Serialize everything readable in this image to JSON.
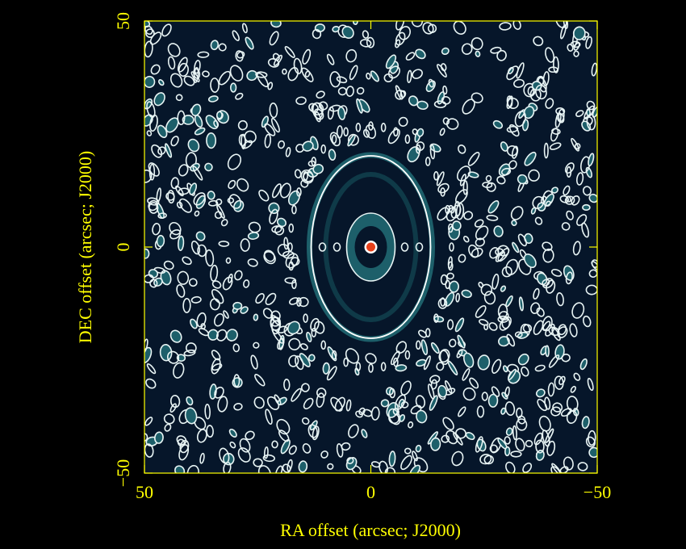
{
  "chart_data": {
    "type": "contour",
    "x_label": "RA offset (arcsec; J2000)",
    "y_label": "DEC offset (arcsec; J2000)",
    "xlim": [
      50,
      -50
    ],
    "ylim": [
      -50,
      50
    ],
    "xticks": [
      50,
      0,
      {
        "value": -50,
        "label": "−50"
      }
    ],
    "yticks": [
      {
        "value": -50,
        "label": "−50"
      },
      0,
      50
    ],
    "axis_color": "#ffff00"
  }
}
